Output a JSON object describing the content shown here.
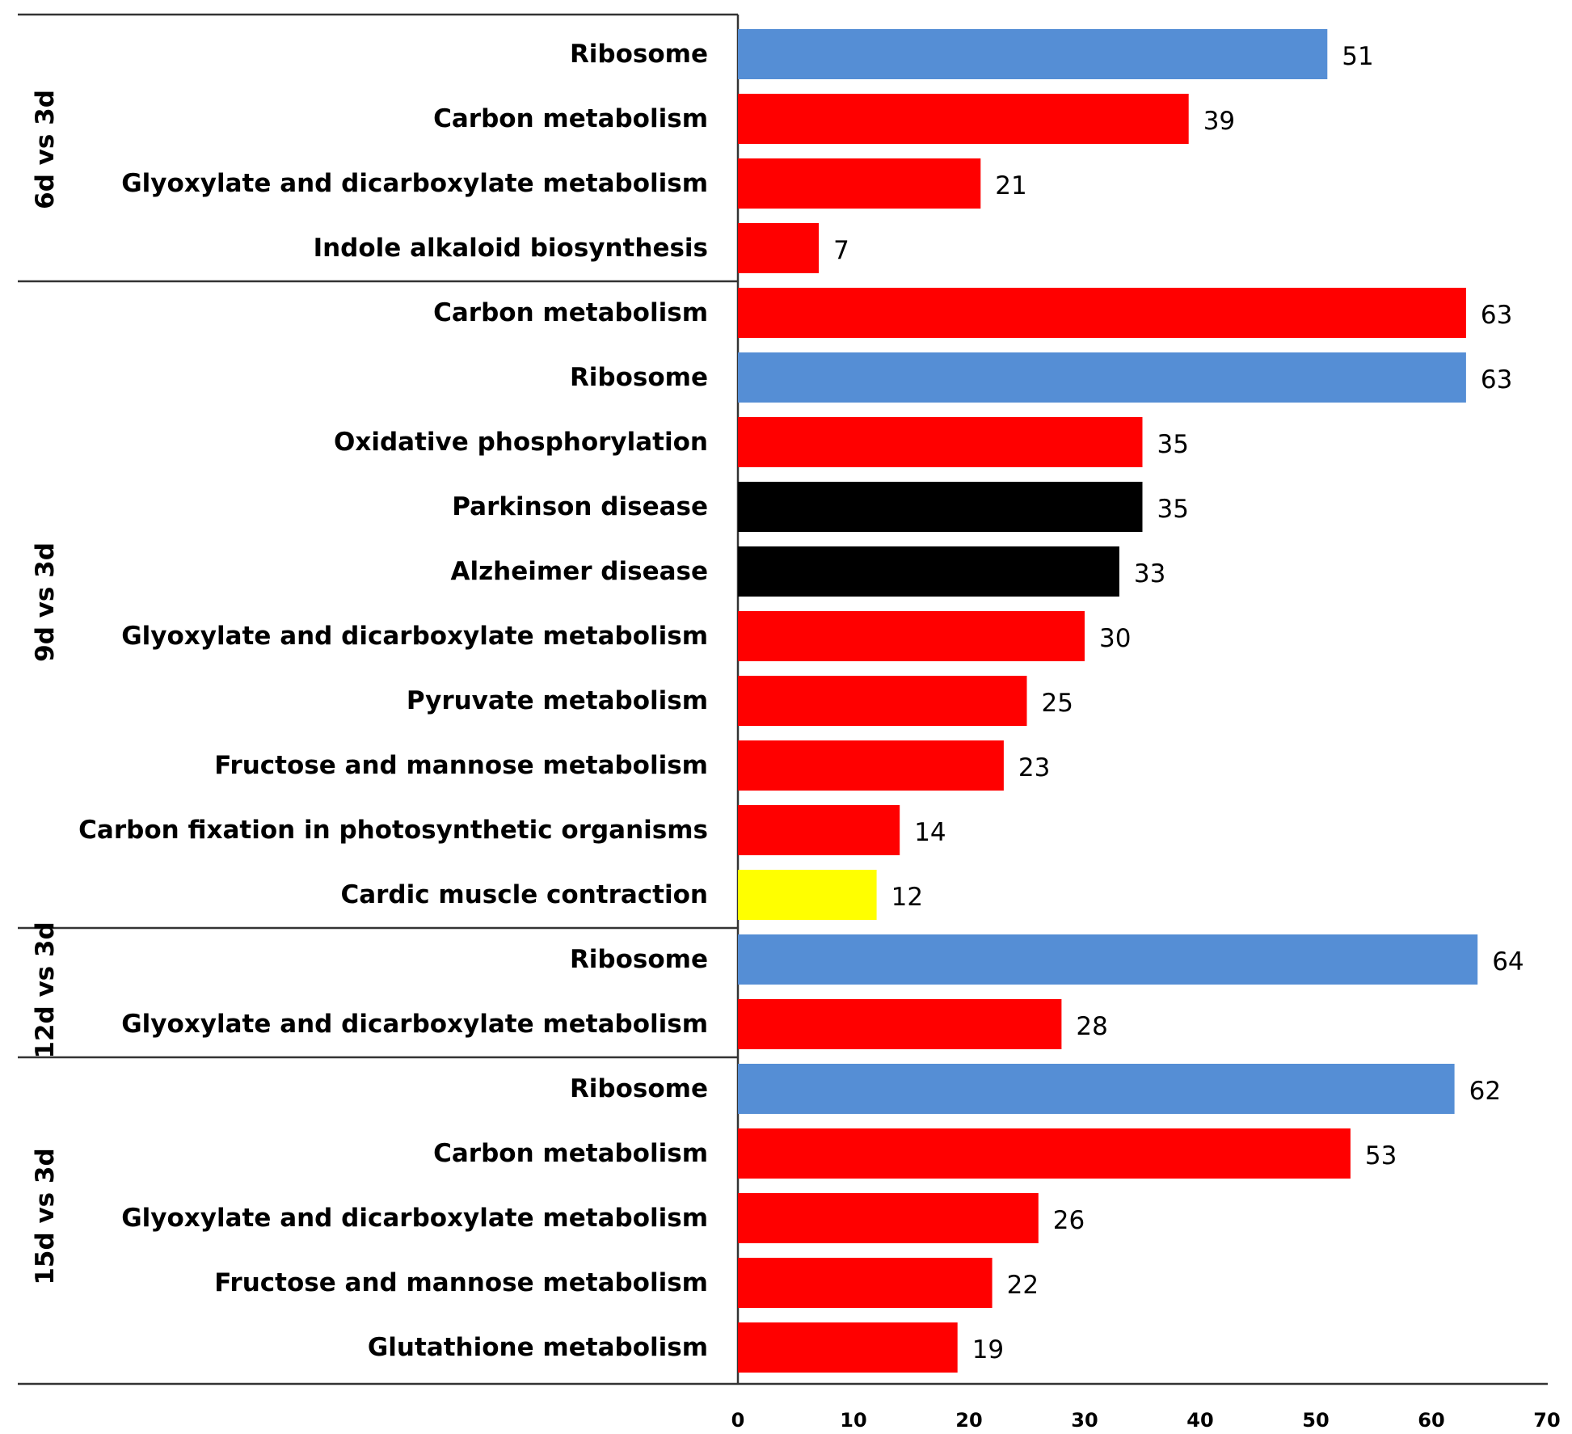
{
  "chart_data": {
    "type": "bar",
    "orientation": "horizontal",
    "title": "",
    "xlabel": "",
    "ylabel": "",
    "xlim": [
      0,
      70
    ],
    "x_ticks": [
      0,
      10,
      20,
      30,
      40,
      50,
      60,
      70
    ],
    "grid": false,
    "legend": "none",
    "colors": {
      "blue": "#558ED5",
      "red": "#FF0000",
      "black": "#000000",
      "yellow": "#FFFF00"
    },
    "groups": [
      {
        "label": "6d vs 3d",
        "bars": [
          {
            "category": "Ribosome",
            "value": 51,
            "color": "#558ED5"
          },
          {
            "category": "Carbon metabolism",
            "value": 39,
            "color": "#FF0000"
          },
          {
            "category": "Glyoxylate and dicarboxylate metabolism",
            "value": 21,
            "color": "#FF0000"
          },
          {
            "category": "Indole alkaloid biosynthesis",
            "value": 7,
            "color": "#FF0000"
          }
        ]
      },
      {
        "label": "9d vs 3d",
        "bars": [
          {
            "category": "Carbon metabolism",
            "value": 63,
            "color": "#FF0000"
          },
          {
            "category": "Ribosome",
            "value": 63,
            "color": "#558ED5"
          },
          {
            "category": "Oxidative phosphorylation",
            "value": 35,
            "color": "#FF0000"
          },
          {
            "category": "Parkinson disease",
            "value": 35,
            "color": "#000000"
          },
          {
            "category": "Alzheimer disease",
            "value": 33,
            "color": "#000000"
          },
          {
            "category": "Glyoxylate and dicarboxylate metabolism",
            "value": 30,
            "color": "#FF0000"
          },
          {
            "category": "Pyruvate metabolism",
            "value": 25,
            "color": "#FF0000"
          },
          {
            "category": "Fructose and mannose metabolism",
            "value": 23,
            "color": "#FF0000"
          },
          {
            "category": "Carbon fixation in photosynthetic organisms",
            "value": 14,
            "color": "#FF0000"
          },
          {
            "category": "Cardic muscle contraction",
            "value": 12,
            "color": "#FFFF00"
          }
        ]
      },
      {
        "label": "12d vs 3d",
        "bars": [
          {
            "category": "Ribosome",
            "value": 64,
            "color": "#558ED5"
          },
          {
            "category": "Glyoxylate and dicarboxylate metabolism",
            "value": 28,
            "color": "#FF0000"
          }
        ]
      },
      {
        "label": "15d vs 3d",
        "bars": [
          {
            "category": "Ribosome",
            "value": 62,
            "color": "#558ED5"
          },
          {
            "category": "Carbon metabolism",
            "value": 53,
            "color": "#FF0000"
          },
          {
            "category": "Glyoxylate and dicarboxylate metabolism",
            "value": 26,
            "color": "#FF0000"
          },
          {
            "category": "Fructose and mannose metabolism",
            "value": 22,
            "color": "#FF0000"
          },
          {
            "category": "Glutathione metabolism",
            "value": 19,
            "color": "#FF0000"
          }
        ]
      }
    ]
  }
}
